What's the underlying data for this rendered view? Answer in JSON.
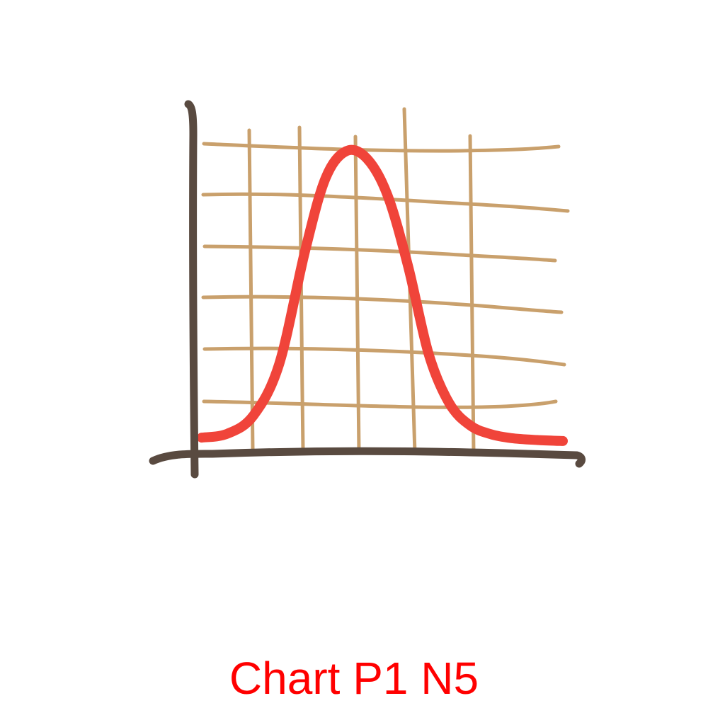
{
  "caption": "Chart P1 N5",
  "colors": {
    "background": "#ffffff",
    "axis": "#594a40",
    "grid": "#c9a06c",
    "curve": "#f0443a",
    "caption": "#ff0000"
  },
  "chart_data": {
    "type": "line",
    "style": "hand-drawn",
    "title": "",
    "xlabel": "",
    "ylabel": "",
    "x_ticks": [],
    "y_ticks": [],
    "grid": true,
    "legend": "none",
    "xlim": [
      0,
      7
    ],
    "ylim": [
      0,
      6
    ],
    "series": [
      {
        "x": [
          0,
          0.5,
          1,
          1.5,
          2,
          2.4,
          2.8,
          3.2,
          3.6,
          4.0,
          4.4,
          4.8,
          5.2,
          5.6,
          6.0,
          6.5,
          7.0
        ],
        "values": [
          0.1,
          0.18,
          0.55,
          1.6,
          3.9,
          5.4,
          5.95,
          5.8,
          5.05,
          3.6,
          1.8,
          0.8,
          0.35,
          0.17,
          0.09,
          0.05,
          0.03
        ]
      }
    ]
  }
}
